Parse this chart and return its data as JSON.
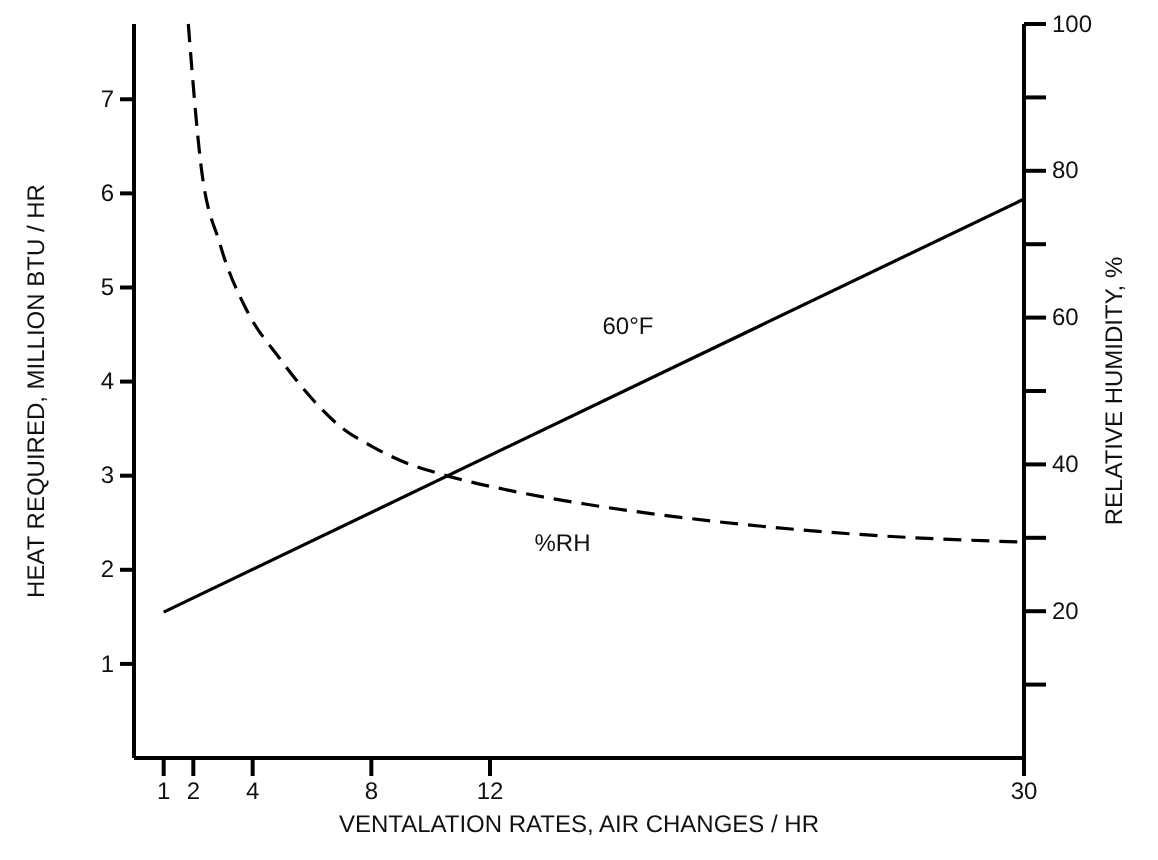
{
  "chart_data": {
    "type": "line",
    "xlabel": "VENTALATION RATES, AIR CHANGES / HR",
    "ylabel": "HEAT REQUIRED, MILLION BTU / HR",
    "y2label": "RELATIVE HUMIDITY, %",
    "xlim": [
      0,
      30
    ],
    "xticks": [
      1,
      2,
      4,
      8,
      12,
      30
    ],
    "ylim": [
      0,
      7.8
    ],
    "yticks": [
      1,
      2,
      3,
      4,
      5,
      6,
      7
    ],
    "y2lim": [
      0,
      100
    ],
    "y2ticks": [
      {
        "value": 10,
        "label": null
      },
      20,
      {
        "value": 30,
        "label": null
      },
      40,
      {
        "value": 50,
        "label": null
      },
      60,
      {
        "value": 70,
        "label": null
      },
      80,
      {
        "value": 90,
        "label": null
      },
      100
    ],
    "grid": false,
    "legend": false,
    "marker": "none",
    "series": [
      {
        "name": "60°F",
        "color": "#000000",
        "line_style": "solid",
        "x": [
          1,
          30
        ],
        "values": [
          1.55,
          5.94
        ]
      },
      {
        "name": "%RH",
        "color": "#000000",
        "line_style": "dashed",
        "axis": "y2",
        "x": [
          1.83,
          2.25,
          2.9,
          3.8,
          4.9,
          6.1,
          7,
          8,
          9,
          10.5,
          12.6,
          15.2,
          18.6,
          24.3,
          30
        ],
        "values": [
          100,
          81,
          70,
          61,
          54.5,
          48.5,
          45,
          42.5,
          40.5,
          38.5,
          36.5,
          34.6,
          32.7,
          30.5,
          29.4
        ]
      }
    ]
  }
}
